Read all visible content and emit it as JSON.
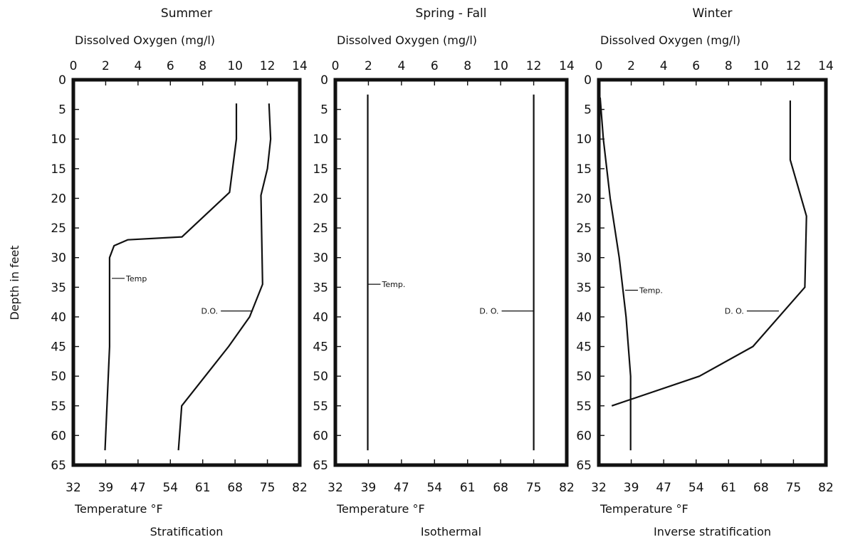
{
  "y_axis_label": "Depth in feet",
  "chart_data": [
    {
      "type": "line",
      "title": "Summer",
      "top_axis_label": "Dissolved Oxygen (mg/l)",
      "bottom_axis_label": "Temperature °F",
      "caption": "Stratification",
      "do_ticks": [
        "0",
        "2",
        "4",
        "6",
        "8",
        "10",
        "12",
        "14"
      ],
      "temp_ticks": [
        "32",
        "39",
        "47",
        "54",
        "61",
        "68",
        "75",
        "82"
      ],
      "depth_ticks": [
        "0",
        "5",
        "10",
        "15",
        "20",
        "25",
        "30",
        "35",
        "40",
        "45",
        "50",
        "55",
        "60",
        "65"
      ],
      "do_range": [
        0,
        14
      ],
      "temp_range": [
        32,
        82
      ],
      "depth_range": [
        0,
        65
      ],
      "series": [
        {
          "name": "Temp",
          "label": "Temp",
          "unit": "°F",
          "depth": [
            4,
            10,
            19,
            26.5,
            27,
            28,
            30,
            45,
            62.5
          ],
          "values": [
            68,
            68,
            66.5,
            56,
            44,
            41,
            40,
            40,
            39
          ]
        },
        {
          "name": "D.O.",
          "label": "D.O.",
          "unit": "mg/l",
          "depth": [
            4,
            10,
            15,
            19.5,
            34.5,
            40,
            45,
            55,
            62.5
          ],
          "values": [
            12.1,
            12.2,
            12,
            11.6,
            11.7,
            10.9,
            9.6,
            6.7,
            6.5
          ]
        }
      ]
    },
    {
      "type": "line",
      "title": "Spring - Fall",
      "top_axis_label": "Dissolved Oxygen (mg/l)",
      "bottom_axis_label": "Temperature °F",
      "caption": "Isothermal",
      "do_ticks": [
        "0",
        "2",
        "4",
        "6",
        "8",
        "10",
        "12",
        "14"
      ],
      "temp_ticks": [
        "32",
        "39",
        "47",
        "54",
        "61",
        "68",
        "75",
        "82"
      ],
      "depth_ticks": [
        "0",
        "5",
        "10",
        "15",
        "20",
        "25",
        "30",
        "35",
        "40",
        "45",
        "50",
        "55",
        "60",
        "65"
      ],
      "do_range": [
        0,
        14
      ],
      "temp_range": [
        32,
        82
      ],
      "depth_range": [
        0,
        65
      ],
      "series": [
        {
          "name": "Temp.",
          "label": "Temp.",
          "unit": "°F",
          "depth": [
            2.5,
            62.5
          ],
          "values": [
            39,
            39
          ]
        },
        {
          "name": "D.O.",
          "label": "D. O.",
          "unit": "mg/l",
          "depth": [
            2.5,
            62.5
          ],
          "values": [
            12,
            12
          ]
        }
      ]
    },
    {
      "type": "line",
      "title": "Winter",
      "top_axis_label": "Dissolved Oxygen (mg/l)",
      "bottom_axis_label": "Temperature °F",
      "caption": "Inverse stratification",
      "do_ticks": [
        "0",
        "2",
        "4",
        "6",
        "8",
        "10",
        "12",
        "14"
      ],
      "temp_ticks": [
        "32",
        "39",
        "47",
        "54",
        "61",
        "68",
        "75",
        "82"
      ],
      "depth_ticks": [
        "0",
        "5",
        "10",
        "15",
        "20",
        "25",
        "30",
        "35",
        "40",
        "45",
        "50",
        "55",
        "60",
        "65"
      ],
      "do_range": [
        0,
        14
      ],
      "temp_range": [
        32,
        82
      ],
      "depth_range": [
        0,
        65
      ],
      "series": [
        {
          "name": "Temp.",
          "label": "Temp.",
          "unit": "°F",
          "depth": [
            3,
            10,
            20,
            30,
            40,
            50,
            62.5
          ],
          "values": [
            32.3,
            33,
            34.5,
            36.5,
            38,
            39,
            39
          ]
        },
        {
          "name": "D.O.",
          "label": "D. O.",
          "unit": "mg/l",
          "depth": [
            3.5,
            13.5,
            23,
            35,
            45,
            50,
            55
          ],
          "values": [
            11.8,
            11.8,
            12.8,
            12.7,
            9.5,
            6.2,
            0.8
          ]
        }
      ]
    }
  ]
}
